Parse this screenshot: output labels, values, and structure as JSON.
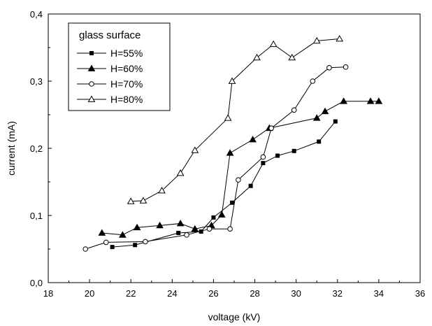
{
  "chart_data": {
    "type": "line",
    "title": "",
    "xlabel": "voltage (kV)",
    "ylabel": "current (mA)",
    "xlim": [
      18,
      36
    ],
    "ylim": [
      0.0,
      0.4
    ],
    "xticks": [
      "18",
      "20",
      "22",
      "24",
      "26",
      "28",
      "30",
      "32",
      "34",
      "36"
    ],
    "yticks": [
      "0,0",
      "0,1",
      "0,2",
      "0,3",
      "0,4"
    ],
    "grid": false,
    "legend": {
      "title": "glass surface",
      "position": "top-left"
    },
    "series": [
      {
        "name": "H=55%",
        "marker": "filled-square",
        "points": [
          [
            21.1,
            0.053
          ],
          [
            22.2,
            0.056
          ],
          [
            24.3,
            0.074
          ],
          [
            25.4,
            0.076
          ],
          [
            26.0,
            0.097
          ],
          [
            26.9,
            0.119
          ],
          [
            27.8,
            0.144
          ],
          [
            28.4,
            0.178
          ],
          [
            29.1,
            0.189
          ],
          [
            29.9,
            0.196
          ],
          [
            31.1,
            0.21
          ],
          [
            31.9,
            0.24
          ]
        ]
      },
      {
        "name": "H=60%",
        "marker": "filled-triangle",
        "points": [
          [
            20.6,
            0.074
          ],
          [
            21.6,
            0.071
          ],
          [
            22.3,
            0.082
          ],
          [
            23.4,
            0.085
          ],
          [
            24.4,
            0.088
          ],
          [
            25.1,
            0.08
          ],
          [
            25.9,
            0.085
          ],
          [
            26.4,
            0.101
          ],
          [
            26.8,
            0.193
          ],
          [
            27.9,
            0.213
          ],
          [
            28.7,
            0.23
          ],
          [
            31.0,
            0.245
          ],
          [
            31.4,
            0.255
          ],
          [
            32.3,
            0.27
          ],
          [
            33.6,
            0.27
          ],
          [
            34.0,
            0.27
          ]
        ]
      },
      {
        "name": "H=70%",
        "marker": "open-circle",
        "points": [
          [
            19.8,
            0.05
          ],
          [
            20.8,
            0.06
          ],
          [
            22.7,
            0.061
          ],
          [
            24.7,
            0.071
          ],
          [
            25.8,
            0.08
          ],
          [
            26.8,
            0.08
          ],
          [
            27.2,
            0.153
          ],
          [
            28.4,
            0.187
          ],
          [
            28.8,
            0.23
          ],
          [
            29.9,
            0.257
          ],
          [
            30.8,
            0.3
          ],
          [
            31.6,
            0.32
          ],
          [
            32.4,
            0.321
          ]
        ]
      },
      {
        "name": "H=80%",
        "marker": "open-triangle",
        "points": [
          [
            22.0,
            0.121
          ],
          [
            22.6,
            0.122
          ],
          [
            23.5,
            0.137
          ],
          [
            24.4,
            0.163
          ],
          [
            25.1,
            0.197
          ],
          [
            26.7,
            0.245
          ],
          [
            26.9,
            0.3
          ],
          [
            28.1,
            0.335
          ],
          [
            28.9,
            0.355
          ],
          [
            29.8,
            0.335
          ],
          [
            31.0,
            0.36
          ],
          [
            32.1,
            0.363
          ]
        ]
      }
    ]
  }
}
